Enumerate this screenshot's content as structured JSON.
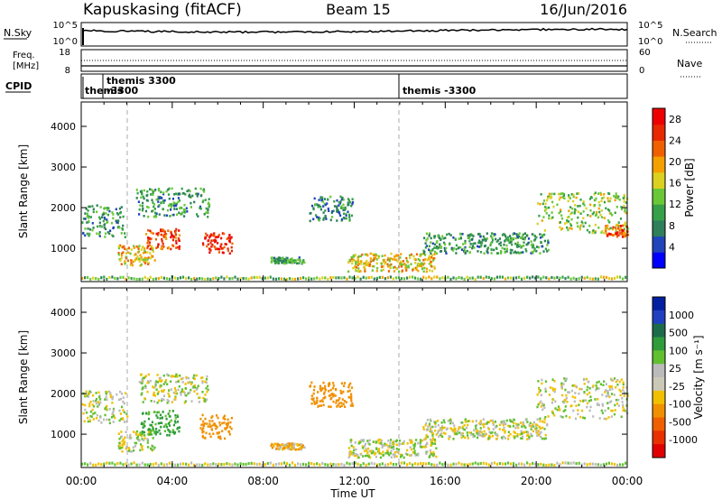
{
  "header": {
    "station": "Kapuskasing (fitACF)",
    "beam": "Beam 15",
    "date": "16/Jun/2016"
  },
  "noise_panel": {
    "left_label": "N.Sky",
    "right_label": "N.Search",
    "ticks_left": [
      "10^5",
      "10^0"
    ],
    "ticks_right": [
      "10^5",
      "10^0"
    ]
  },
  "freq_panel": {
    "left_label_1": "Freq.",
    "left_label_2": "[MHz]",
    "ticks_left": [
      "18",
      "8"
    ],
    "right_label": "Nave",
    "ticks_right": [
      "60",
      "0"
    ]
  },
  "cpid_panel": {
    "label": "CPID",
    "entries": [
      "themis",
      "themis 3300",
      "-3300",
      "themis -3300"
    ]
  },
  "x_axis": {
    "title": "Time UT",
    "ticks": [
      "00:00",
      "04:00",
      "08:00",
      "12:00",
      "16:00",
      "20:00",
      "00:00"
    ]
  },
  "power_colorbar": {
    "label": "Power [dB]",
    "ticks": [
      "28",
      "24",
      "20",
      "16",
      "12",
      "8",
      "4"
    ],
    "colors": [
      "#0000ff",
      "#2244bb",
      "#2e7f5a",
      "#36a048",
      "#6ac838",
      "#dcd020",
      "#f4a000",
      "#f06000",
      "#e82800",
      "#ee0000"
    ]
  },
  "velocity_colorbar": {
    "label": "Velocity [m s⁻¹]",
    "ticks": [
      "1000",
      "500",
      "100",
      "25",
      "-25",
      "-100",
      "-500",
      "-1000"
    ],
    "colors": [
      "#0020a0",
      "#2040c0",
      "#1c6c4c",
      "#2f9c3c",
      "#60c030",
      "#bbbbbb",
      "#ccc8b8",
      "#f0c000",
      "#f09000",
      "#f06000",
      "#e83000",
      "#e00000"
    ]
  },
  "chart_data": [
    {
      "type": "heatmap",
      "title": "Power",
      "xlabel": "Time UT",
      "ylabel": "Slant Range [km]",
      "x_range_hours": [
        0,
        24
      ],
      "ylim": [
        180,
        4600
      ],
      "y_ticks": [
        1000,
        2000,
        3000,
        4000
      ],
      "x_ticks": [
        "00:00",
        "04:00",
        "08:00",
        "12:00",
        "16:00",
        "20:00",
        "00:00"
      ],
      "colorbar": {
        "label": "Power [dB]",
        "range": [
          0,
          30
        ]
      },
      "echo_regions": [
        {
          "t_start": 0.0,
          "t_end": 1.9,
          "r_low": 1300,
          "r_high": 2100,
          "power_db": 10
        },
        {
          "t_start": 1.6,
          "t_end": 3.2,
          "r_low": 600,
          "r_high": 1100,
          "power_db": 18
        },
        {
          "t_start": 2.8,
          "t_end": 4.3,
          "r_low": 1000,
          "r_high": 1500,
          "power_db": 24
        },
        {
          "t_start": 5.3,
          "t_end": 6.6,
          "r_low": 900,
          "r_high": 1400,
          "power_db": 26
        },
        {
          "t_start": 2.4,
          "t_end": 5.6,
          "r_low": 1800,
          "r_high": 2500,
          "power_db": 10
        },
        {
          "t_start": 8.3,
          "t_end": 9.8,
          "r_low": 650,
          "r_high": 800,
          "power_db": 10
        },
        {
          "t_start": 10.0,
          "t_end": 11.9,
          "r_low": 1700,
          "r_high": 2300,
          "power_db": 8
        },
        {
          "t_start": 11.7,
          "t_end": 15.6,
          "r_low": 450,
          "r_high": 900,
          "power_db": 18
        },
        {
          "t_start": 15.0,
          "t_end": 20.5,
          "r_low": 900,
          "r_high": 1400,
          "power_db": 10
        },
        {
          "t_start": 20.0,
          "t_end": 24.0,
          "r_low": 1400,
          "r_high": 2400,
          "power_db": 14
        },
        {
          "t_start": 23.0,
          "t_end": 24.0,
          "r_low": 1300,
          "r_high": 1600,
          "power_db": 24
        }
      ]
    },
    {
      "type": "heatmap",
      "title": "Velocity",
      "xlabel": "Time UT",
      "ylabel": "Slant Range [km]",
      "x_range_hours": [
        0,
        24
      ],
      "ylim": [
        180,
        4600
      ],
      "y_ticks": [
        1000,
        2000,
        3000,
        4000
      ],
      "x_ticks": [
        "00:00",
        "04:00",
        "08:00",
        "12:00",
        "16:00",
        "20:00",
        "00:00"
      ],
      "colorbar": {
        "label": "Velocity [m s⁻¹]",
        "range": [
          -1000,
          1000
        ]
      },
      "echo_regions": [
        {
          "t_start": 0.0,
          "t_end": 2.0,
          "r_low": 1300,
          "r_high": 2100,
          "velocity": 0
        },
        {
          "t_start": 1.6,
          "t_end": 3.2,
          "r_low": 600,
          "r_high": 1100,
          "velocity": 0
        },
        {
          "t_start": 2.6,
          "t_end": 4.3,
          "r_low": 1000,
          "r_high": 1600,
          "velocity": 150
        },
        {
          "t_start": 5.2,
          "t_end": 6.6,
          "r_low": 900,
          "r_high": 1500,
          "velocity": -400
        },
        {
          "t_start": 2.5,
          "t_end": 5.6,
          "r_low": 1800,
          "r_high": 2500,
          "velocity": 0
        },
        {
          "t_start": 8.3,
          "t_end": 9.8,
          "r_low": 650,
          "r_high": 800,
          "velocity": -80
        },
        {
          "t_start": 10.0,
          "t_end": 11.9,
          "r_low": 1700,
          "r_high": 2300,
          "velocity": -200
        },
        {
          "t_start": 11.7,
          "t_end": 15.6,
          "r_low": 450,
          "r_high": 900,
          "velocity": 0
        },
        {
          "t_start": 15.0,
          "t_end": 20.5,
          "r_low": 900,
          "r_high": 1400,
          "velocity": 0
        },
        {
          "t_start": 20.0,
          "t_end": 24.0,
          "r_low": 1400,
          "r_high": 2400,
          "velocity": 0
        }
      ]
    }
  ]
}
